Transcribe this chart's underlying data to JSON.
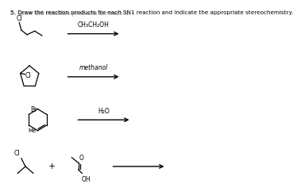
{
  "title": "5. Draw the reaction products for each Sₙ₁ reaction and indicate the appropriate stereochemistry.",
  "bg_color": "#ffffff",
  "text_color": "#000000",
  "rxn1_reagent": "CH₃CH₂OH",
  "rxn2_reagent": "methanol",
  "rxn3_reagent": "H₂O",
  "rxn4_reagent": "",
  "arrow1": [
    0.28,
    0.855,
    0.55,
    0.855
  ],
  "arrow2": [
    0.28,
    0.615,
    0.55,
    0.615
  ],
  "arrow3": [
    0.33,
    0.375,
    0.6,
    0.375
  ],
  "arrow4": [
    0.5,
    0.115,
    0.77,
    0.115
  ]
}
